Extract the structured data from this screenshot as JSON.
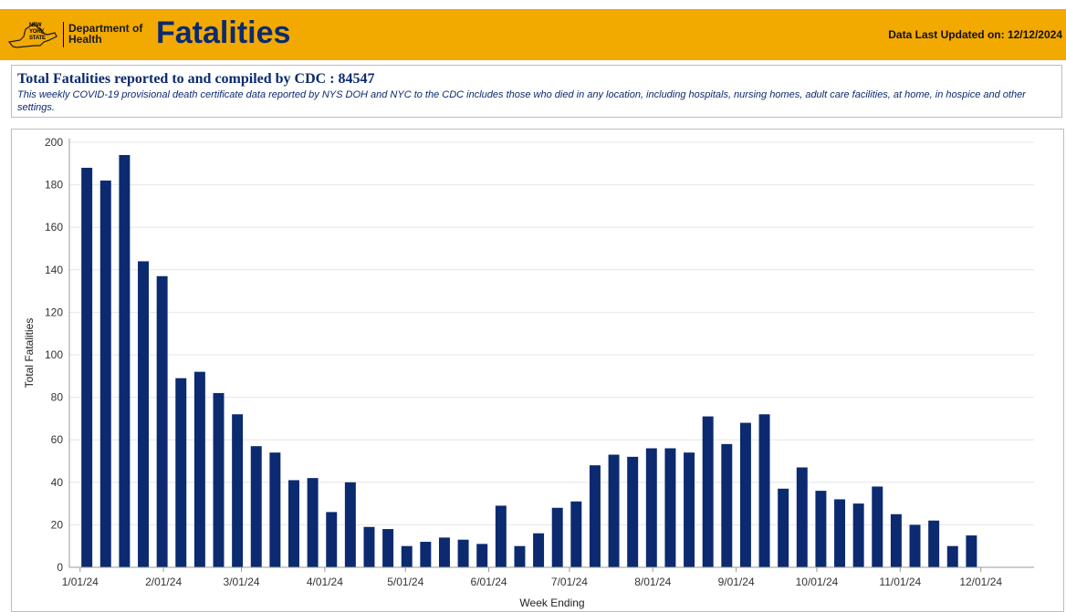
{
  "header": {
    "logo_state_lines": [
      "NEW",
      "YORK",
      "STATE"
    ],
    "logo_dept_line1": "Department of",
    "logo_dept_line2": "Health",
    "title": "Fatalities",
    "updated": "Data Last Updated on: 12/12/2024"
  },
  "info": {
    "title": "Total Fatalities reported to and compiled by CDC : 84547",
    "description": "This weekly COVID-19 provisional death certificate data reported by NYS DOH and NYC to the CDC includes those who died in any location, including hospitals, nursing homes, adult care facilities, at home, in hospice and other settings."
  },
  "colors": {
    "header_bg": "#f2a900",
    "bar": "#0b2a6f",
    "title_text": "#0b2a6f",
    "grid": "#e6e6e6"
  },
  "chart_data": {
    "type": "bar",
    "xlabel": "Week Ending",
    "ylabel": "Total Fatalities",
    "ylim": [
      0,
      200
    ],
    "yticks": [
      0,
      20,
      40,
      60,
      80,
      100,
      120,
      140,
      160,
      180,
      200
    ],
    "grid": "horizontal",
    "x_tick_labels": [
      "1/01/24",
      "2/01/24",
      "3/01/24",
      "4/01/24",
      "5/01/24",
      "6/01/24",
      "7/01/24",
      "8/01/24",
      "9/01/24",
      "10/01/24",
      "11/01/24",
      "12/01/24"
    ],
    "x_tick_dates": [
      "2024-01-01",
      "2024-02-01",
      "2024-03-01",
      "2024-04-01",
      "2024-05-01",
      "2024-06-01",
      "2024-07-01",
      "2024-08-01",
      "2024-09-01",
      "2024-10-01",
      "2024-11-01",
      "2024-12-01"
    ],
    "x_domain": [
      "2023-12-28",
      "2024-12-14"
    ],
    "week_ending": [
      "2024-01-07",
      "2024-01-14",
      "2024-01-21",
      "2024-01-28",
      "2024-02-04",
      "2024-02-11",
      "2024-02-18",
      "2024-02-25",
      "2024-03-03",
      "2024-03-10",
      "2024-03-17",
      "2024-03-24",
      "2024-03-31",
      "2024-04-07",
      "2024-04-14",
      "2024-04-21",
      "2024-04-28",
      "2024-05-05",
      "2024-05-12",
      "2024-05-19",
      "2024-05-26",
      "2024-06-02",
      "2024-06-09",
      "2024-06-16",
      "2024-06-23",
      "2024-06-30",
      "2024-07-07",
      "2024-07-14",
      "2024-07-21",
      "2024-07-28",
      "2024-08-04",
      "2024-08-11",
      "2024-08-18",
      "2024-08-25",
      "2024-09-01",
      "2024-09-08",
      "2024-09-15",
      "2024-09-22",
      "2024-09-29",
      "2024-10-06",
      "2024-10-13",
      "2024-10-20",
      "2024-10-27",
      "2024-11-03",
      "2024-11-10",
      "2024-11-17",
      "2024-11-24",
      "2024-12-01",
      "2024-12-08"
    ],
    "values": [
      188,
      182,
      194,
      144,
      137,
      89,
      92,
      82,
      72,
      57,
      54,
      41,
      42,
      26,
      40,
      19,
      18,
      10,
      12,
      14,
      13,
      11,
      29,
      10,
      16,
      28,
      31,
      48,
      53,
      52,
      56,
      56,
      54,
      71,
      58,
      68,
      72,
      37,
      47,
      36,
      32,
      30,
      38,
      25,
      20,
      22,
      10,
      15,
      null
    ]
  }
}
